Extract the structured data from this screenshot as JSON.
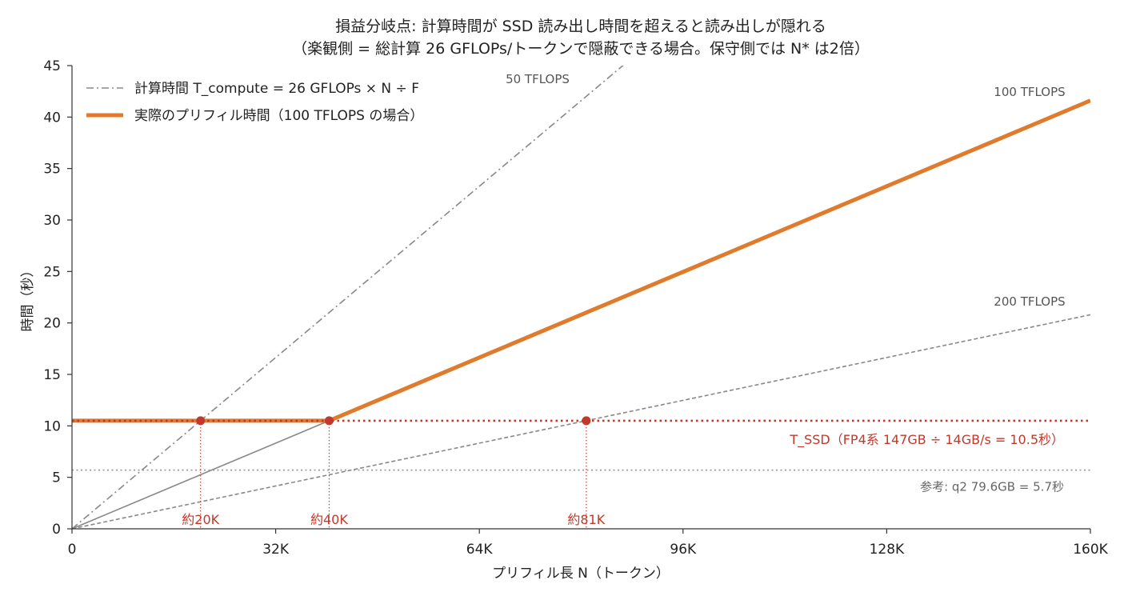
{
  "chart_data": {
    "type": "line",
    "title": "損益分岐点: 計算時間が SSD 読み出し時間を超えると読み出しが隠れる",
    "subtitle": "（楽観側 = 総計算 26 GFLOPs/トークンで隠蔽できる場合。保守側では N* は2倍）",
    "xlabel": "プリフィル長 N（トークン）",
    "ylabel": "時間（秒）",
    "xlim": [
      0,
      160000
    ],
    "ylim": [
      0,
      45
    ],
    "x_ticks": [
      {
        "value": 0,
        "label": "0"
      },
      {
        "value": 32000,
        "label": "32K"
      },
      {
        "value": 64000,
        "label": "64K"
      },
      {
        "value": 96000,
        "label": "96K"
      },
      {
        "value": 128000,
        "label": "128K"
      },
      {
        "value": 160000,
        "label": "160K"
      }
    ],
    "y_ticks": [
      0,
      5,
      10,
      15,
      20,
      25,
      30,
      35,
      40,
      45
    ],
    "grid": false,
    "legend_position": "top-left",
    "legend": [
      {
        "label": "計算時間 T_compute = 26 GFLOPs × N ÷ F",
        "style": "dashdot",
        "color": "#888888"
      },
      {
        "label": "実際のプリフィル時間（100 TFLOPS の場合）",
        "style": "solid-thick",
        "color": "#e07b2e"
      }
    ],
    "series": [
      {
        "label": "50 TFLOPS",
        "style": "dashdot",
        "color": "#888888",
        "x": [
          0,
          160000
        ],
        "y": [
          0,
          83.2
        ]
      },
      {
        "label": "100 TFLOPS",
        "style": "solid",
        "color": "#888888",
        "x": [
          0,
          160000
        ],
        "y": [
          0,
          41.6
        ]
      },
      {
        "label": "200 TFLOPS",
        "style": "dashed",
        "color": "#888888",
        "x": [
          0,
          160000
        ],
        "y": [
          0,
          20.8
        ]
      },
      {
        "style": "solid-thick",
        "color": "#e07b2e",
        "x": [
          0,
          40400,
          160000
        ],
        "y": [
          10.5,
          10.5,
          41.6
        ]
      }
    ],
    "line_labels": [
      {
        "text": "50 TFLOPS",
        "x": 36000,
        "y": 43.8
      },
      {
        "text": "100 TFLOPS",
        "x": 144000,
        "y": 42.0
      },
      {
        "text": "200 TFLOPS",
        "x": 144000,
        "y": 21.6
      }
    ],
    "hlines": [
      {
        "y": 10.5,
        "color": "#c0392b",
        "style": "dotted",
        "label": "T_SSD（FP4系 147GB ÷ 14GB/s = 10.5秒）"
      },
      {
        "y": 5.7,
        "color": "#999999",
        "style": "dotted",
        "label": "参考: q2 79.6GB = 5.7秒"
      }
    ],
    "breakeven_points": [
      {
        "x": 20200,
        "y": 10.5,
        "label": "約20K"
      },
      {
        "x": 40400,
        "y": 10.5,
        "label": "約40K"
      },
      {
        "x": 80800,
        "y": 10.5,
        "label": "約81K"
      }
    ],
    "colors": {
      "compute": "#888888",
      "actual": "#e07b2e",
      "ssd": "#c0392b",
      "reference": "#999999"
    }
  }
}
